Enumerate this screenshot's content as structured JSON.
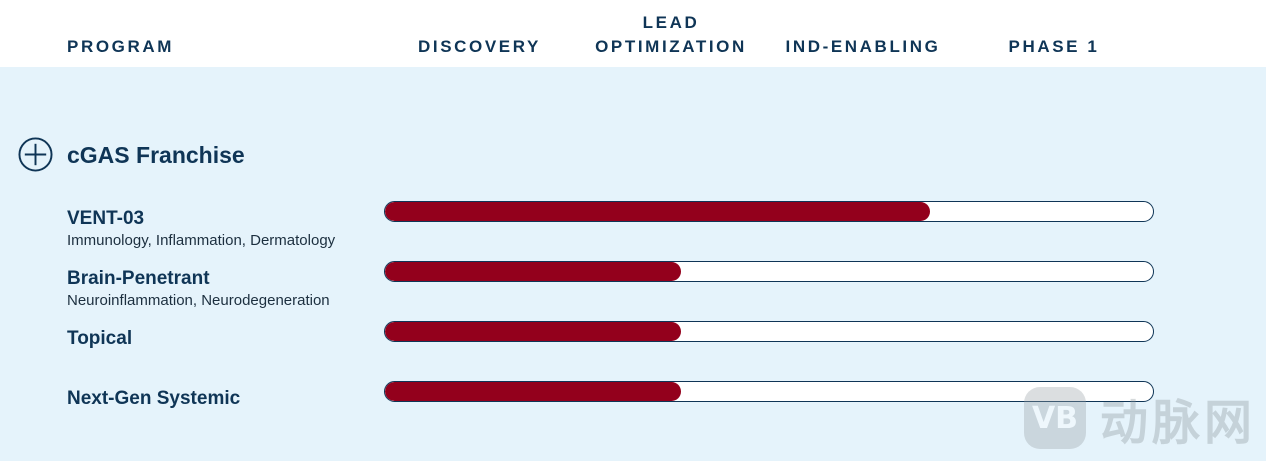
{
  "header": {
    "program": "PROGRAM",
    "stages": [
      {
        "lines": [
          "DISCOVERY"
        ]
      },
      {
        "lines": [
          "LEAD",
          "OPTIMIZATION"
        ]
      },
      {
        "lines": [
          "IND-ENABLING"
        ]
      },
      {
        "lines": [
          "PHASE 1"
        ]
      }
    ]
  },
  "franchise": {
    "title": "cGAS Franchise",
    "icon": "plus-circle-icon"
  },
  "programs": [
    {
      "name": "VENT-03",
      "indication": "Immunology, Inflammation, Dermatology",
      "progress": 0.71
    },
    {
      "name": "Brain-Penetrant",
      "indication": "Neuroinflammation, Neurodegeneration",
      "progress": 0.385
    },
    {
      "name": "Topical",
      "indication": "",
      "progress": 0.385
    },
    {
      "name": "Next-Gen Systemic",
      "indication": "",
      "progress": 0.385
    }
  ],
  "colors": {
    "navy": "#0f3556",
    "fill": "#93001c",
    "background": "#e5f3fb"
  },
  "watermark": {
    "logo": "VB",
    "text": "动脉网"
  }
}
